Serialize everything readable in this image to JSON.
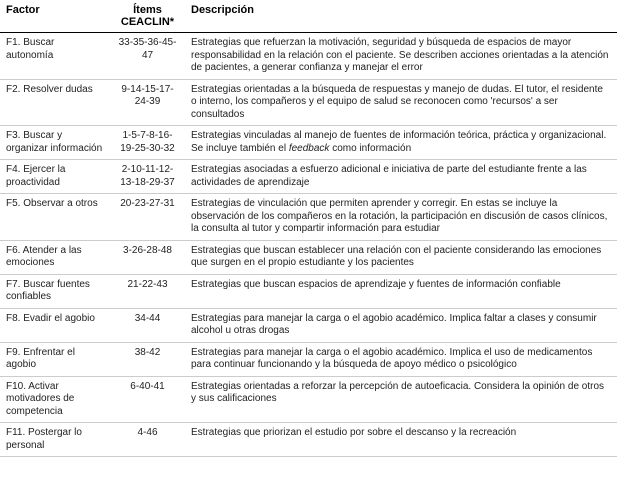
{
  "table": {
    "header": {
      "factor": "Factor",
      "items": "Ítems CEACLIN*",
      "desc": "Descripción"
    },
    "rows": [
      {
        "factor": "F1. Buscar autonomía",
        "items": "33-35-36-45-47",
        "desc": "Estrategias que refuerzan la motivación, seguridad y búsqueda de espacios de mayor responsabilidad en la relación con el paciente. Se describen acciones orientadas a la atención de pacientes, a generar confianza y manejar el error"
      },
      {
        "factor": "F2. Resolver dudas",
        "items": "9-14-15-17-24-39",
        "desc": "Estrategias orientadas a la búsqueda de respuestas y manejo de dudas. El tutor, el residente o interno, los compañeros y el equipo de salud se reconocen como 'recursos' a ser consultados"
      },
      {
        "factor": "F3. Buscar y organizar información",
        "items": "1-5-7-8-16-19-25-30-32",
        "desc_html": "Estrategias vinculadas al manejo de fuentes de información teórica, práctica y organizacional. Se incluye también el <span class=\"fi\">feedback</span> como información"
      },
      {
        "factor": "F4. Ejercer la proactividad",
        "items": "2-10-11-12-13-18-29-37",
        "desc": "Estrategias asociadas a esfuerzo adicional e iniciativa de parte del estudiante frente a las actividades de aprendizaje"
      },
      {
        "factor": "F5. Observar a otros",
        "items": "20-23-27-31",
        "desc": "Estrategias de vinculación que permiten aprender y corregir. En estas se incluye la observación de los compañeros en la rotación, la participación en discusión de casos clínicos, la consulta al tutor y compartir información para estudiar"
      },
      {
        "factor": "F6. Atender a las emociones",
        "items": "3-26-28-48",
        "desc": "Estrategias que buscan establecer una relación con el paciente considerando las emociones que surgen en el propio estudiante y los pacientes"
      },
      {
        "factor": "F7. Buscar fuentes confiables",
        "items": "21-22-43",
        "desc": "Estrategias que buscan espacios de aprendizaje y fuentes de información confiable"
      },
      {
        "factor": "F8. Evadir el agobio",
        "items": "34-44",
        "desc": "Estrategias para manejar la carga o el agobio académico. Implica faltar a clases y consumir alcohol u otras drogas"
      },
      {
        "factor": "F9. Enfrentar el agobio",
        "items": "38-42",
        "desc": "Estrategias para manejar la carga o el agobio académico. Implica el uso de medicamentos para continuar funcionando y la búsqueda de apoyo médico o psicológico"
      },
      {
        "factor": "F10. Activar motivadores de competencia",
        "items": "6-40-41",
        "desc": "Estrategias orientadas a reforzar la percepción de autoeficacia. Considera la opinión de otros y sus calificaciones"
      },
      {
        "factor": "F11. Postergar lo personal",
        "items": "4-46",
        "desc": "Estrategias que priorizan el estudio por sobre el descanso y la recreación"
      }
    ]
  }
}
